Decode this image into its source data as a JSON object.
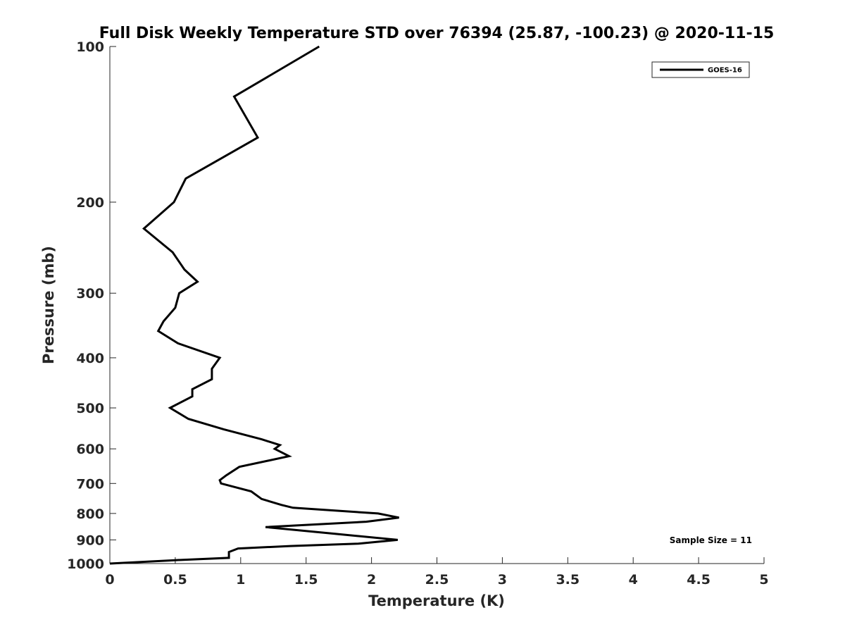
{
  "chart_data": {
    "type": "line",
    "title": "Full Disk Weekly Temperature STD over 76394 (25.87, -100.23) @ 2020-11-15",
    "xlabel": "Temperature (K)",
    "ylabel": "Pressure (mb)",
    "xlim": [
      0,
      5
    ],
    "ylim": [
      1000,
      100
    ],
    "y_scale": "log",
    "y_reversed": true,
    "x_ticks": [
      "0",
      "0.5",
      "1",
      "1.5",
      "2",
      "2.5",
      "3",
      "3.5",
      "4",
      "4.5",
      "5"
    ],
    "y_ticks": [
      "100",
      "200",
      "300",
      "400",
      "500",
      "600",
      "700",
      "800",
      "900",
      "1000"
    ],
    "grid": false,
    "legend": {
      "position": "top-right",
      "entries": [
        "GOES-16"
      ]
    },
    "annotation": "Sample Size = 11",
    "series": [
      {
        "name": "GOES-16",
        "color": "#000000",
        "points": [
          [
            1.6,
            100
          ],
          [
            0.95,
            125
          ],
          [
            1.13,
            150
          ],
          [
            0.58,
            180
          ],
          [
            0.49,
            200
          ],
          [
            0.26,
            225
          ],
          [
            0.48,
            250
          ],
          [
            0.57,
            270
          ],
          [
            0.67,
            285
          ],
          [
            0.53,
            300
          ],
          [
            0.5,
            320
          ],
          [
            0.41,
            340
          ],
          [
            0.37,
            355
          ],
          [
            0.52,
            375
          ],
          [
            0.84,
            400
          ],
          [
            0.78,
            420
          ],
          [
            0.78,
            440
          ],
          [
            0.63,
            460
          ],
          [
            0.63,
            475
          ],
          [
            0.46,
            500
          ],
          [
            0.6,
            525
          ],
          [
            0.87,
            550
          ],
          [
            1.16,
            575
          ],
          [
            1.3,
            590
          ],
          [
            1.26,
            600
          ],
          [
            1.37,
            620
          ],
          [
            0.99,
            650
          ],
          [
            0.89,
            675
          ],
          [
            0.84,
            690
          ],
          [
            0.85,
            700
          ],
          [
            1.08,
            725
          ],
          [
            1.16,
            750
          ],
          [
            1.31,
            770
          ],
          [
            1.4,
            780
          ],
          [
            2.05,
            800
          ],
          [
            2.21,
            815
          ],
          [
            1.96,
            830
          ],
          [
            1.19,
            850
          ],
          [
            1.7,
            875
          ],
          [
            2.2,
            900
          ],
          [
            1.9,
            915
          ],
          [
            1.38,
            925
          ],
          [
            0.98,
            935
          ],
          [
            0.91,
            950
          ],
          [
            0.91,
            975
          ],
          [
            0.5,
            985
          ],
          [
            0.0,
            1000
          ]
        ]
      }
    ]
  }
}
